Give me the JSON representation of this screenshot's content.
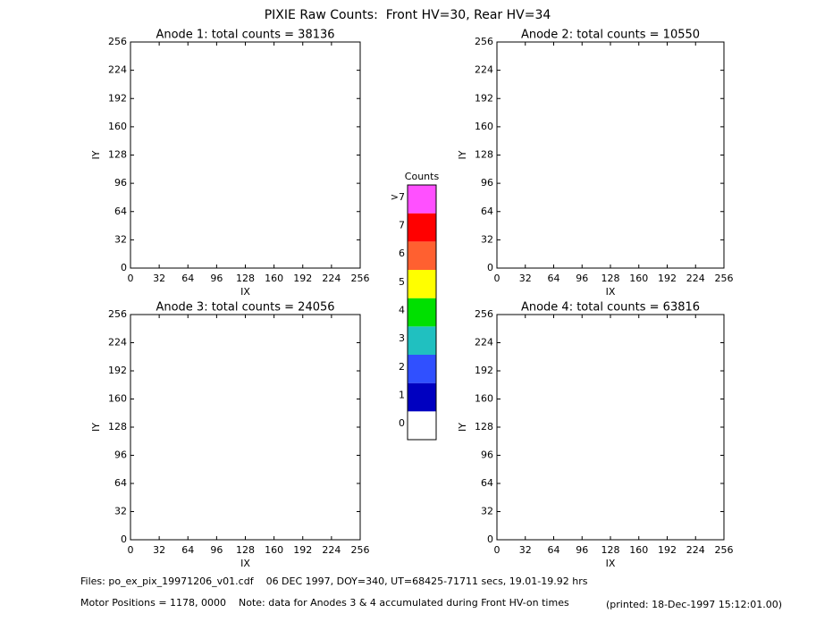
{
  "title": "PIXIE Raw Counts:  Front HV=30, Rear HV=34",
  "chart_data": [
    {
      "type": "heatmap",
      "title": "Anode 1: total counts = 38136",
      "x_label": "IX",
      "y_label": "IY",
      "xlim": [
        0,
        256
      ],
      "ylim": [
        0,
        256
      ],
      "xticks": [
        0,
        32,
        64,
        96,
        128,
        160,
        192,
        224,
        256
      ],
      "yticks": [
        0,
        32,
        64,
        96,
        128,
        160,
        192,
        224,
        256
      ]
    },
    {
      "type": "heatmap",
      "title": "Anode 2: total counts = 10550",
      "x_label": "IX",
      "y_label": "IY",
      "xlim": [
        0,
        256
      ],
      "ylim": [
        0,
        256
      ],
      "xticks": [
        0,
        32,
        64,
        96,
        128,
        160,
        192,
        224,
        256
      ],
      "yticks": [
        0,
        32,
        64,
        96,
        128,
        160,
        192,
        224,
        256
      ]
    },
    {
      "type": "heatmap",
      "title": "Anode 3: total counts = 24056",
      "x_label": "IX",
      "y_label": "IY",
      "xlim": [
        0,
        256
      ],
      "ylim": [
        0,
        256
      ],
      "xticks": [
        0,
        32,
        64,
        96,
        128,
        160,
        192,
        224,
        256
      ],
      "yticks": [
        0,
        32,
        64,
        96,
        128,
        160,
        192,
        224,
        256
      ]
    },
    {
      "type": "heatmap",
      "title": "Anode 4: total counts = 63816",
      "x_label": "IX",
      "y_label": "IY",
      "xlim": [
        0,
        256
      ],
      "ylim": [
        0,
        256
      ],
      "xticks": [
        0,
        32,
        64,
        96,
        128,
        160,
        192,
        224,
        256
      ],
      "yticks": [
        0,
        32,
        64,
        96,
        128,
        160,
        192,
        224,
        256
      ]
    }
  ],
  "colorbar": {
    "title": "Counts",
    "labels": [
      "0",
      "1",
      "2",
      "3",
      "4",
      "5",
      "6",
      "7",
      ">7"
    ],
    "colors": [
      "#ffffff",
      "#0000c0",
      "#3050ff",
      "#20c0c0",
      "#00e000",
      "#ffff00",
      "#ff6030",
      "#ff0000",
      "#ff50ff"
    ]
  },
  "footer": {
    "files": "Files: po_ex_pix_19971206_v01.cdf    06 DEC 1997, DOY=340, UT=68425-71711 secs, 19.01-19.92 hrs",
    "motor": "Motor Positions = 1178, 0000    Note: data for Anodes 3 & 4 accumulated during Front HV-on times",
    "printed": "(printed: 18-Dec-1997 15:12:01.00)"
  }
}
